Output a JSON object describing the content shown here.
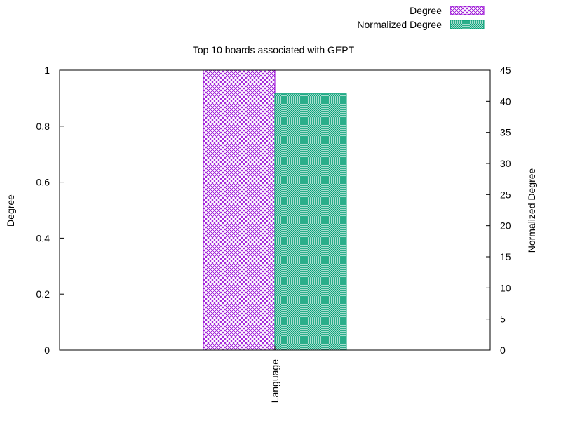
{
  "chart_data": {
    "type": "bar",
    "title": "Top 10 boards associated with GEPT",
    "categories": [
      "Language"
    ],
    "series": [
      {
        "name": "Degree",
        "axis": "left",
        "values": [
          1.0
        ],
        "color": "#9400d3",
        "pattern": "crosshatch"
      },
      {
        "name": "Normalized Degree",
        "axis": "right",
        "values": [
          41.2
        ],
        "color": "#009e73",
        "pattern": "fine-grid"
      }
    ],
    "ylabel": "Degree",
    "y2label": "Normalized Degree",
    "xlabel": "",
    "ylim": [
      0,
      1
    ],
    "y2lim": [
      0,
      45
    ],
    "yticks": [
      "0",
      "0.2",
      "0.4",
      "0.6",
      "0.8",
      "1"
    ],
    "y2ticks": [
      "0",
      "5",
      "10",
      "15",
      "20",
      "25",
      "30",
      "35",
      "40",
      "45"
    ],
    "grid": false,
    "legend_position": "top-right"
  }
}
